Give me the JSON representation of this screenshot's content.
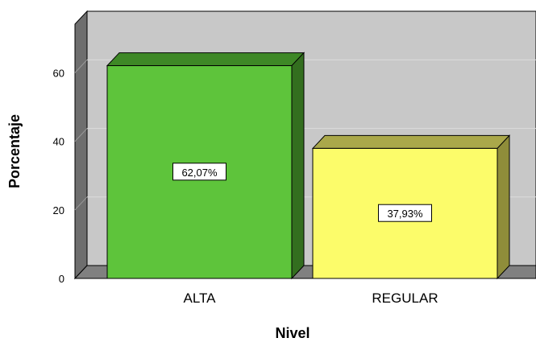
{
  "chart_data": {
    "type": "bar",
    "style": "3d",
    "categories": [
      "ALTA",
      "REGULAR"
    ],
    "values": [
      62.07,
      37.93
    ],
    "data_labels": [
      "62,07%",
      "37,93%"
    ],
    "xlabel": "Nivel",
    "ylabel": "Porcentaje",
    "ylim": [
      0,
      75
    ],
    "yticks": [
      "0",
      "20",
      "40",
      "60"
    ],
    "grid": true,
    "legend": "none",
    "colors": {
      "bar_fronts": [
        "#5ec43b",
        "#fcfc6a"
      ],
      "bar_tops": [
        "#3e8826",
        "#aaa84a"
      ],
      "bar_sides": [
        "#336e1f",
        "#8f8d3a"
      ],
      "plot_background": "#c8c8c8",
      "wall_left": "#6e6e6e",
      "floor": "#808080",
      "gridline": "#dcdcdc"
    }
  }
}
